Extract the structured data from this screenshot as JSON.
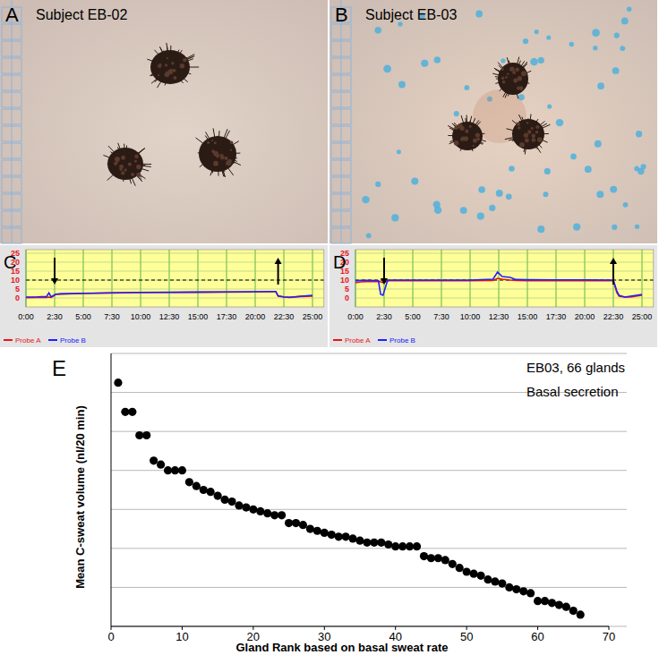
{
  "images": [
    {
      "label": "A",
      "title": "Subject EB-02"
    },
    {
      "label": "B",
      "title": "Subject EB-03"
    }
  ],
  "chart_data": [
    {
      "type": "line",
      "title": "C",
      "x": [
        0,
        1,
        1.8,
        2.0,
        2.2,
        2.6,
        3,
        5,
        7.5,
        10,
        12.5,
        15,
        17.5,
        20,
        21.5,
        21.8,
        22,
        22.5,
        23,
        24,
        25
      ],
      "xlim": [
        0,
        26
      ],
      "xticks": [
        {
          "value": 0,
          "label": "0:00"
        },
        {
          "value": 2.5,
          "label": "2:30"
        },
        {
          "value": 5,
          "label": "5:00"
        },
        {
          "value": 7.5,
          "label": "7:30"
        },
        {
          "value": 10,
          "label": "10:00"
        },
        {
          "value": 12.5,
          "label": "12:30"
        },
        {
          "value": 15,
          "label": "15:00"
        },
        {
          "value": 17.5,
          "label": "17:30"
        },
        {
          "value": 20,
          "label": "20:00"
        },
        {
          "value": 22.5,
          "label": "22:30"
        },
        {
          "value": 25,
          "label": "25:00"
        }
      ],
      "ylim": [
        -5,
        27
      ],
      "yticks": [
        0,
        5,
        10,
        15,
        20,
        25
      ],
      "grid": true,
      "legend": "bottom",
      "threshold": 10,
      "arrows": [
        {
          "x": 2.5,
          "direction": "down"
        },
        {
          "x": 22,
          "direction": "up"
        }
      ],
      "series": [
        {
          "name": "Probe A",
          "color": "#e8141c",
          "values": [
            0.2,
            0.3,
            0.3,
            0.5,
            0.3,
            2.0,
            2.2,
            2.5,
            2.8,
            3.0,
            3.1,
            3.2,
            3.3,
            3.4,
            3.5,
            3.5,
            1.0,
            0.5,
            0.3,
            0.8,
            1.0
          ]
        },
        {
          "name": "Probe B",
          "color": "#2020ff",
          "values": [
            0.5,
            0.6,
            0.8,
            2.8,
            0.6,
            2.1,
            2.3,
            2.6,
            2.9,
            3.1,
            3.2,
            3.3,
            3.4,
            3.5,
            3.6,
            3.6,
            1.2,
            0.6,
            0.4,
            1.0,
            1.5
          ]
        }
      ]
    },
    {
      "type": "line",
      "title": "D",
      "x": [
        0,
        0.5,
        1,
        2,
        2.2,
        2.4,
        2.8,
        3,
        5,
        7.5,
        10,
        12,
        12.4,
        12.8,
        13.5,
        14,
        15,
        17.5,
        20,
        22.5,
        22.8,
        23,
        23.5,
        24,
        25
      ],
      "xlim": [
        0,
        26
      ],
      "xticks": [
        {
          "value": 0,
          "label": "0:00"
        },
        {
          "value": 2.5,
          "label": "2:30"
        },
        {
          "value": 5,
          "label": "5:00"
        },
        {
          "value": 7.5,
          "label": "7:30"
        },
        {
          "value": 10,
          "label": "10:00"
        },
        {
          "value": 12.5,
          "label": "12:30"
        },
        {
          "value": 15,
          "label": "15:00"
        },
        {
          "value": 17.5,
          "label": "17:30"
        },
        {
          "value": 20,
          "label": "20:00"
        },
        {
          "value": 22.5,
          "label": "22:30"
        },
        {
          "value": 25,
          "label": "25:00"
        }
      ],
      "ylim": [
        -5,
        27
      ],
      "yticks": [
        0,
        5,
        10,
        15,
        20,
        25
      ],
      "grid": true,
      "legend": "bottom",
      "threshold": 10,
      "arrows": [
        {
          "x": 2.5,
          "direction": "down"
        },
        {
          "x": 22.5,
          "direction": "up"
        }
      ],
      "series": [
        {
          "name": "Probe A",
          "color": "#e8141c",
          "values": [
            8.5,
            9.0,
            9.2,
            9.3,
            9.0,
            8.5,
            9.5,
            9.6,
            9.6,
            9.6,
            9.6,
            9.8,
            11,
            10.5,
            10,
            9.8,
            9.7,
            9.6,
            9.6,
            9.6,
            3,
            1,
            0.5,
            0.5,
            1.5
          ]
        },
        {
          "name": "Probe B",
          "color": "#2020ff",
          "values": [
            9.5,
            9.8,
            9.8,
            9.6,
            2,
            1.5,
            9.8,
            10,
            10,
            10,
            10,
            10.5,
            14.5,
            12,
            11.5,
            10.3,
            10.2,
            10.1,
            10.1,
            10,
            4,
            1.5,
            0.5,
            1,
            2
          ]
        }
      ]
    },
    {
      "type": "scatter",
      "title": "E",
      "annotations": [
        "EB03, 66 glands",
        "Basal secretion"
      ],
      "x_label": "Gland Rank based on basal sweat rate",
      "y_label": "Mean C-sweat volume (nl/20 min)",
      "x": [
        1,
        2,
        3,
        4,
        5,
        6,
        7,
        8,
        9,
        10,
        11,
        12,
        13,
        14,
        15,
        16,
        17,
        18,
        19,
        20,
        21,
        22,
        23,
        24,
        25,
        26,
        27,
        28,
        29,
        30,
        31,
        32,
        33,
        34,
        35,
        36,
        37,
        38,
        39,
        40,
        41,
        42,
        43,
        44,
        45,
        46,
        47,
        48,
        49,
        50,
        51,
        52,
        53,
        54,
        55,
        56,
        57,
        58,
        59,
        60,
        61,
        62,
        63,
        64,
        65,
        66
      ],
      "values": [
        6.25,
        5.5,
        5.5,
        4.9,
        4.9,
        4.25,
        4.15,
        4.0,
        4.0,
        4.0,
        3.7,
        3.6,
        3.5,
        3.45,
        3.35,
        3.25,
        3.2,
        3.1,
        3.05,
        3.0,
        2.95,
        2.9,
        2.85,
        2.85,
        2.65,
        2.65,
        2.6,
        2.5,
        2.45,
        2.4,
        2.35,
        2.3,
        2.3,
        2.25,
        2.2,
        2.15,
        2.15,
        2.15,
        2.1,
        2.05,
        2.05,
        2.05,
        2.05,
        1.8,
        1.75,
        1.75,
        1.7,
        1.6,
        1.5,
        1.4,
        1.35,
        1.3,
        1.2,
        1.15,
        1.1,
        1.0,
        0.95,
        0.9,
        0.85,
        0.65,
        0.65,
        0.6,
        0.55,
        0.5,
        0.4,
        0.3
      ],
      "xlim": [
        0,
        70
      ],
      "xticks": [
        0,
        10,
        20,
        30,
        40,
        50,
        60,
        70
      ],
      "ylim": [
        0,
        7
      ],
      "yticks": [
        0,
        1,
        2,
        3,
        4,
        5,
        6,
        7
      ],
      "grid": true,
      "tick_labels": "x",
      "color": "#000000",
      "marker": "circle"
    }
  ]
}
